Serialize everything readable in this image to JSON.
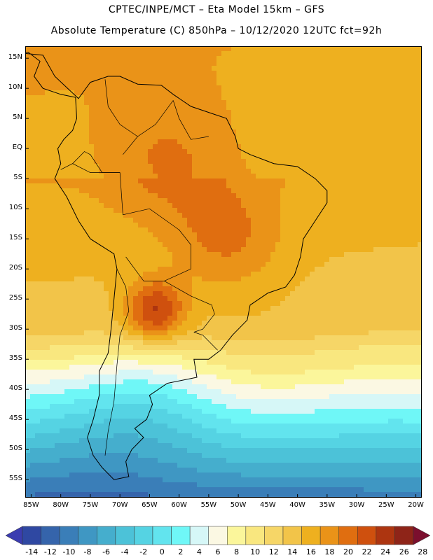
{
  "header": {
    "line1": "CPTEC/INPE/MCT –  Eta Model 15km – GFS",
    "line2": "Absolute Temperature (C) 850hPa – 10/12/2020 12UTC fct=92h"
  },
  "map": {
    "lat_labels": [
      "15N",
      "10N",
      "5N",
      "EQ",
      "5S",
      "10S",
      "15S",
      "20S",
      "25S",
      "30S",
      "35S",
      "40S",
      "45S",
      "50S",
      "55S"
    ],
    "lat_values": [
      15,
      10,
      5,
      0,
      -5,
      -10,
      -15,
      -20,
      -25,
      -30,
      -35,
      -40,
      -45,
      -50,
      -55
    ],
    "lon_labels": [
      "85W",
      "80W",
      "75W",
      "70W",
      "65W",
      "60W",
      "55W",
      "50W",
      "45W",
      "40W",
      "35W",
      "30W",
      "25W",
      "20W"
    ],
    "lon_values": [
      -85,
      -80,
      -75,
      -70,
      -65,
      -60,
      -55,
      -50,
      -45,
      -40,
      -35,
      -30,
      -25,
      -20
    ],
    "lat_range": [
      -58,
      17
    ],
    "lon_range": [
      -86,
      -19
    ]
  },
  "colorbar": {
    "labels": [
      "-14",
      "-12",
      "-10",
      "-8",
      "-6",
      "-4",
      "-2",
      "0",
      "2",
      "4",
      "6",
      "8",
      "10",
      "12",
      "14",
      "16",
      "18",
      "20",
      "22",
      "24",
      "26",
      "28"
    ],
    "colors": {
      "under": "#3b3cb0",
      "bins": [
        "#2f48a2",
        "#3564ab",
        "#3a7eb8",
        "#3f97c3",
        "#45aecd",
        "#4cc2d8",
        "#55d3e3",
        "#62e4ee",
        "#6ff7f7",
        "#d6f7f7",
        "#fbf8e3",
        "#fbf69b",
        "#f9e77f",
        "#f6d667",
        "#f2c449",
        "#eeb01f",
        "#ea9318",
        "#e06e10",
        "#cf500e",
        "#ad3510",
        "#8e2418"
      ],
      "over": "#7b0f2e"
    }
  }
}
